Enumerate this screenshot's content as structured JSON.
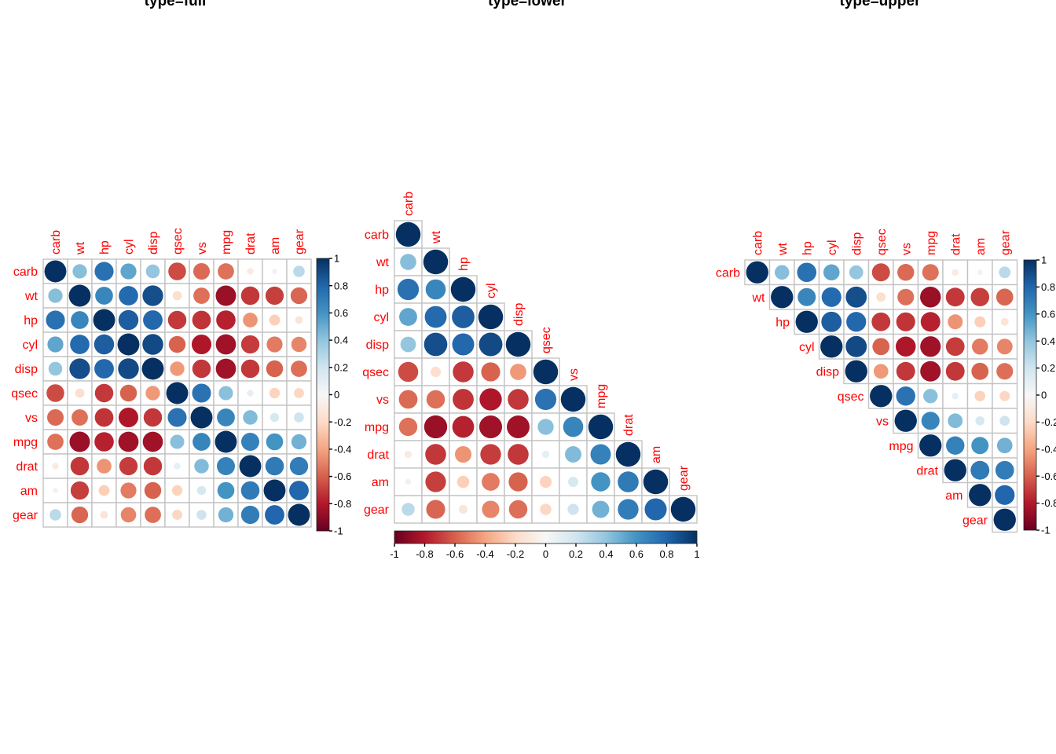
{
  "figure": {
    "titles": {
      "full": "type=full",
      "lower": "type=lower",
      "upper": "type=upper"
    }
  },
  "chart_data": {
    "type": "heatmap",
    "subtype": "correlation-circle-matrix",
    "variables": [
      "carb",
      "wt",
      "hp",
      "cyl",
      "disp",
      "qsec",
      "vs",
      "mpg",
      "drat",
      "am",
      "gear"
    ],
    "matrix": [
      [
        1.0,
        0.428,
        0.75,
        0.527,
        0.395,
        -0.656,
        -0.57,
        -0.551,
        -0.091,
        0.058,
        0.274
      ],
      [
        0.428,
        1.0,
        0.659,
        0.782,
        0.888,
        -0.175,
        -0.555,
        -0.868,
        -0.712,
        -0.692,
        -0.583
      ],
      [
        0.75,
        0.659,
        1.0,
        0.832,
        0.791,
        -0.708,
        -0.723,
        -0.776,
        -0.449,
        -0.243,
        -0.126
      ],
      [
        0.527,
        0.782,
        0.832,
        1.0,
        0.902,
        -0.591,
        -0.811,
        -0.852,
        -0.7,
        -0.523,
        -0.493
      ],
      [
        0.395,
        0.888,
        0.791,
        0.902,
        1.0,
        -0.434,
        -0.71,
        -0.848,
        -0.71,
        -0.591,
        -0.556
      ],
      [
        -0.656,
        -0.175,
        -0.708,
        -0.591,
        -0.434,
        1.0,
        0.745,
        0.419,
        0.091,
        -0.23,
        -0.213
      ],
      [
        -0.57,
        -0.555,
        -0.723,
        -0.811,
        -0.71,
        0.745,
        1.0,
        0.664,
        0.44,
        0.168,
        0.206
      ],
      [
        -0.551,
        -0.868,
        -0.776,
        -0.852,
        -0.848,
        0.419,
        0.664,
        1.0,
        0.681,
        0.6,
        0.48
      ],
      [
        -0.091,
        -0.712,
        -0.449,
        -0.7,
        -0.71,
        0.091,
        0.44,
        0.681,
        1.0,
        0.713,
        0.7
      ],
      [
        0.058,
        -0.692,
        -0.243,
        -0.523,
        -0.591,
        -0.23,
        0.168,
        0.6,
        0.713,
        1.0,
        0.794
      ],
      [
        0.274,
        -0.583,
        -0.126,
        -0.493,
        -0.556,
        -0.213,
        0.206,
        0.48,
        0.7,
        0.794,
        1.0
      ]
    ],
    "panels": [
      {
        "title": "type=full",
        "layout": "full",
        "colorbar": "vertical-right"
      },
      {
        "title": "type=lower",
        "layout": "lower",
        "colorbar": "horizontal-bottom"
      },
      {
        "title": "type=upper",
        "layout": "upper",
        "colorbar": "vertical-right"
      }
    ],
    "value_range": [
      -1,
      1
    ],
    "colorbar_ticks_vertical": [
      "1",
      "0.8",
      "0.6",
      "0.4",
      "0.2",
      "0",
      "-0.2",
      "-0.4",
      "-0.6",
      "-0.8",
      "-1"
    ],
    "colorbar_ticks_horizontal": [
      "-1",
      "-0.8",
      "-0.6",
      "-0.4",
      "-0.2",
      "0",
      "0.2",
      "0.4",
      "0.6",
      "0.8",
      "1"
    ],
    "palette_neg_to_pos": [
      "#67001F",
      "#B2182B",
      "#D6604D",
      "#F4A582",
      "#FDDBC7",
      "#F7F7F7",
      "#D1E5F0",
      "#92C5DE",
      "#4393C3",
      "#2166AC",
      "#053061"
    ],
    "label_color": "#FF0000",
    "grid_color": "#C3C3C3",
    "tick_color": "#000000"
  }
}
